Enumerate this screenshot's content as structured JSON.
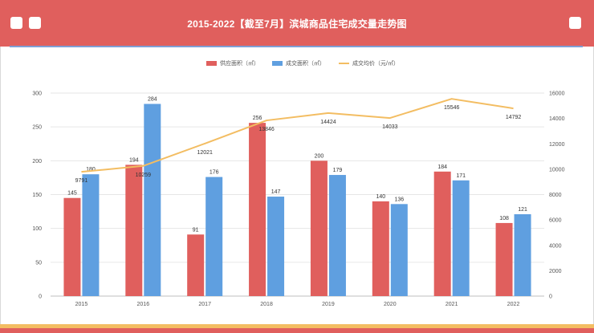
{
  "title": "2015-2022【截至7月】滨城商品住宅成交量走势图",
  "colors": {
    "header": "#e05f5d",
    "supply": "#e05f5d",
    "deal": "#5f9fe0",
    "price": "#f3bd62"
  },
  "chart_data": {
    "type": "bar",
    "categories": [
      "2015",
      "2016",
      "2017",
      "2018",
      "2019",
      "2020",
      "2021",
      "2022"
    ],
    "series": [
      {
        "name": "供应面积（㎡）",
        "type": "bar",
        "axis": "left",
        "values": [
          145,
          194,
          91,
          256,
          200,
          140,
          184,
          108
        ]
      },
      {
        "name": "成交面积（㎡）",
        "type": "bar",
        "axis": "left",
        "values": [
          180,
          284,
          176,
          147,
          179,
          136,
          171,
          121
        ]
      },
      {
        "name": "成交均价（元/㎡）",
        "type": "line",
        "axis": "right",
        "values": [
          9791,
          10259,
          12021,
          13846,
          14424,
          14033,
          15546,
          14792
        ]
      }
    ],
    "y_left": {
      "min": 0,
      "max": 300,
      "ticks": [
        "0",
        "50",
        "100",
        "150",
        "200",
        "250",
        "300"
      ]
    },
    "y_right": {
      "min": 0,
      "max": 16000,
      "ticks": [
        "0",
        "2000",
        "4000",
        "6000",
        "8000",
        "10000",
        "12000",
        "14000",
        "16000"
      ]
    },
    "grid": true,
    "legend": "top-center"
  }
}
